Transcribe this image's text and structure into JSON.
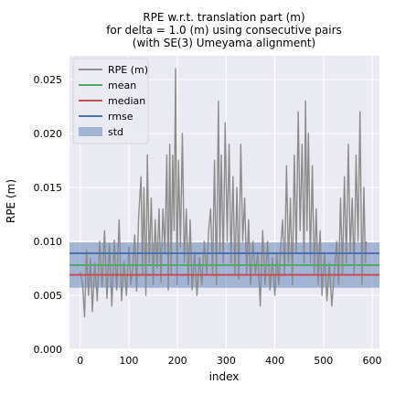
{
  "chart_data": {
    "type": "line",
    "title_lines": [
      "RPE w.r.t. translation part (m)",
      "for delta = 1.0 (m) using consecutive pairs",
      "(with SE(3) Umeyama alignment)"
    ],
    "xlabel": "index",
    "ylabel": "RPE (m)",
    "xlim": [
      -22,
      615
    ],
    "ylim": [
      0.0,
      0.0272
    ],
    "xticks": [
      0,
      100,
      200,
      300,
      400,
      500,
      600
    ],
    "xtick_labels": [
      "0",
      "100",
      "200",
      "300",
      "400",
      "500",
      "600"
    ],
    "yticks": [
      0.0,
      0.005,
      0.01,
      0.015,
      0.02,
      0.025
    ],
    "ytick_labels": [
      "0.000",
      "0.005",
      "0.010",
      "0.015",
      "0.020",
      "0.025"
    ],
    "grid": true,
    "legend_placement": "top-left",
    "legend": [
      {
        "label": "RPE (m)",
        "kind": "line",
        "color": "#8c8c8c"
      },
      {
        "label": "mean",
        "kind": "line",
        "color": "#55a868"
      },
      {
        "label": "median",
        "kind": "line",
        "color": "#c44e52"
      },
      {
        "label": "rmse",
        "kind": "line",
        "color": "#4c72b0"
      },
      {
        "label": "std",
        "kind": "band",
        "color": "#4c72b0"
      }
    ],
    "stats": {
      "mean": 0.0078,
      "median": 0.0069,
      "rmse": 0.0089,
      "std_band": [
        0.0057,
        0.0099
      ]
    },
    "series": [
      {
        "name": "RPE (m)",
        "color": "#8c8c8c",
        "points": [
          [
            0,
            0.0072
          ],
          [
            5,
            0.006
          ],
          [
            9,
            0.003
          ],
          [
            13,
            0.0092
          ],
          [
            17,
            0.005
          ],
          [
            21,
            0.0084
          ],
          [
            25,
            0.0035
          ],
          [
            30,
            0.008
          ],
          [
            35,
            0.0045
          ],
          [
            40,
            0.01
          ],
          [
            45,
            0.0058
          ],
          [
            50,
            0.011
          ],
          [
            55,
            0.0047
          ],
          [
            60,
            0.0098
          ],
          [
            65,
            0.004
          ],
          [
            70,
            0.0101
          ],
          [
            75,
            0.0055
          ],
          [
            80,
            0.012
          ],
          [
            85,
            0.0045
          ],
          [
            90,
            0.0082
          ],
          [
            95,
            0.005
          ],
          [
            100,
            0.0095
          ],
          [
            104,
            0.006
          ],
          [
            108,
            0.0076
          ],
          [
            112,
            0.0106
          ],
          [
            116,
            0.0054
          ],
          [
            120,
            0.0122
          ],
          [
            125,
            0.016
          ],
          [
            128,
            0.007
          ],
          [
            131,
            0.015
          ],
          [
            135,
            0.005
          ],
          [
            138,
            0.018
          ],
          [
            142,
            0.008
          ],
          [
            146,
            0.014
          ],
          [
            150,
            0.006
          ],
          [
            154,
            0.012
          ],
          [
            158,
            0.0075
          ],
          [
            162,
            0.013
          ],
          [
            166,
            0.0062
          ],
          [
            170,
            0.013
          ],
          [
            174,
            0.009
          ],
          [
            178,
            0.018
          ],
          [
            181,
            0.0055
          ],
          [
            184,
            0.019
          ],
          [
            187,
            0.007
          ],
          [
            190,
            0.018
          ],
          [
            193,
            0.011
          ],
          [
            196,
            0.026
          ],
          [
            199,
            0.006
          ],
          [
            202,
            0.0175
          ],
          [
            206,
            0.0095
          ],
          [
            210,
            0.02
          ],
          [
            214,
            0.008
          ],
          [
            218,
            0.013
          ],
          [
            222,
            0.006
          ],
          [
            226,
            0.012
          ],
          [
            230,
            0.0055
          ],
          [
            235,
            0.009
          ],
          [
            240,
            0.005
          ],
          [
            245,
            0.0085
          ],
          [
            250,
            0.006
          ],
          [
            255,
            0.01
          ],
          [
            260,
            0.007
          ],
          [
            264,
            0.011
          ],
          [
            268,
            0.013
          ],
          [
            272,
            0.007
          ],
          [
            276,
            0.0175
          ],
          [
            280,
            0.006
          ],
          [
            284,
            0.023
          ],
          [
            287,
            0.009
          ],
          [
            290,
            0.018
          ],
          [
            294,
            0.008
          ],
          [
            298,
            0.021
          ],
          [
            302,
            0.01
          ],
          [
            306,
            0.019
          ],
          [
            310,
            0.008
          ],
          [
            314,
            0.016
          ],
          [
            318,
            0.007
          ],
          [
            322,
            0.015
          ],
          [
            326,
            0.0065
          ],
          [
            330,
            0.019
          ],
          [
            334,
            0.01
          ],
          [
            338,
            0.014
          ],
          [
            342,
            0.007
          ],
          [
            346,
            0.012
          ],
          [
            350,
            0.006
          ],
          [
            355,
            0.01
          ],
          [
            360,
            0.007
          ],
          [
            365,
            0.009
          ],
          [
            370,
            0.004
          ],
          [
            375,
            0.011
          ],
          [
            380,
            0.006
          ],
          [
            385,
            0.01
          ],
          [
            390,
            0.0055
          ],
          [
            395,
            0.0085
          ],
          [
            400,
            0.005
          ],
          [
            404,
            0.009
          ],
          [
            408,
            0.006
          ],
          [
            412,
            0.0095
          ],
          [
            416,
            0.012
          ],
          [
            420,
            0.007
          ],
          [
            424,
            0.017
          ],
          [
            428,
            0.008
          ],
          [
            432,
            0.014
          ],
          [
            436,
            0.006
          ],
          [
            440,
            0.018
          ],
          [
            444,
            0.009
          ],
          [
            448,
            0.022
          ],
          [
            452,
            0.011
          ],
          [
            456,
            0.019
          ],
          [
            460,
            0.008
          ],
          [
            463,
            0.023
          ],
          [
            466,
            0.011
          ],
          [
            469,
            0.02
          ],
          [
            473,
            0.008
          ],
          [
            477,
            0.017
          ],
          [
            481,
            0.007
          ],
          [
            485,
            0.013
          ],
          [
            489,
            0.006
          ],
          [
            493,
            0.011
          ],
          [
            497,
            0.005
          ],
          [
            502,
            0.009
          ],
          [
            507,
            0.0045
          ],
          [
            512,
            0.008
          ],
          [
            517,
            0.004
          ],
          [
            522,
            0.007
          ],
          [
            527,
            0.01
          ],
          [
            531,
            0.006
          ],
          [
            535,
            0.014
          ],
          [
            539,
            0.007
          ],
          [
            543,
            0.016
          ],
          [
            547,
            0.008
          ],
          [
            551,
            0.019
          ],
          [
            555,
            0.009
          ],
          [
            559,
            0.014
          ],
          [
            563,
            0.007
          ],
          [
            567,
            0.018
          ],
          [
            571,
            0.01
          ],
          [
            575,
            0.022
          ],
          [
            579,
            0.006
          ],
          [
            583,
            0.015
          ],
          [
            586,
            0.008
          ],
          [
            588,
            0.01
          ]
        ]
      }
    ]
  },
  "colors": {
    "plot_background": "#eaeaf2",
    "grid": "#ffffff"
  }
}
